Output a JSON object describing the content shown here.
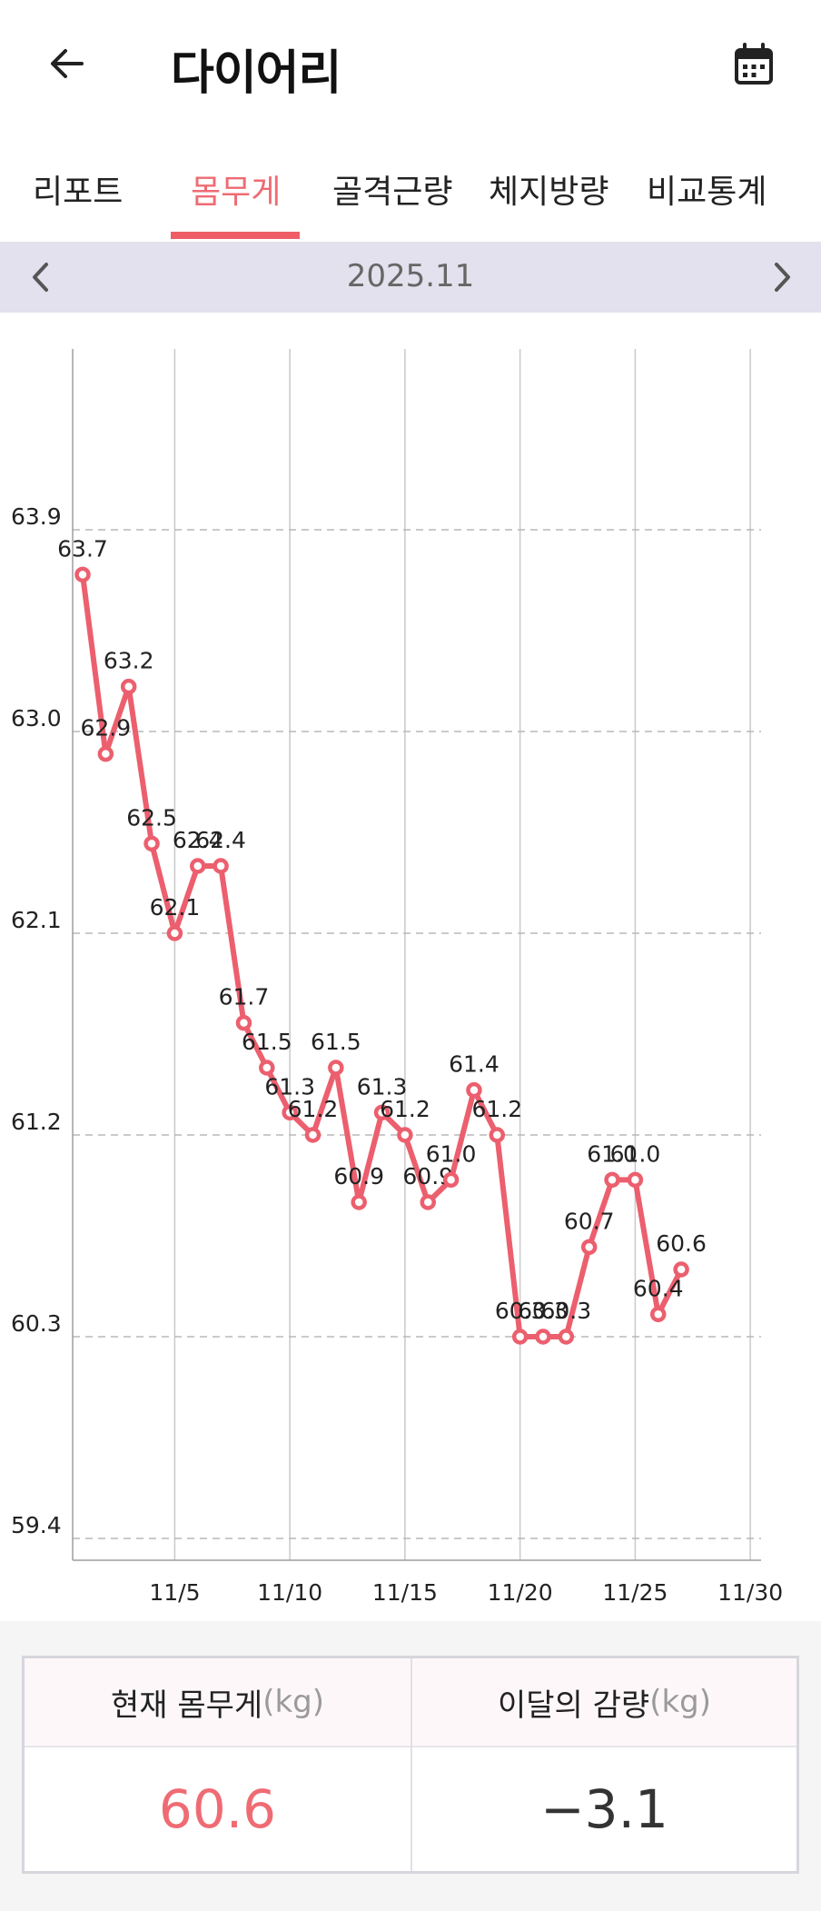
{
  "app": {
    "title": "다이어리"
  },
  "tabs": [
    {
      "label": "리포트",
      "active": false
    },
    {
      "label": "몸무게",
      "active": true
    },
    {
      "label": "골격근량",
      "active": false
    },
    {
      "label": "체지방량",
      "active": false
    },
    {
      "label": "비교통계",
      "active": false
    }
  ],
  "period": {
    "label": "2025.11"
  },
  "colors": {
    "accent": "#ef5e66",
    "line": "#ec5f6e",
    "period_bar": "#e3e1ed"
  },
  "chart_data": {
    "type": "line",
    "xlabel": "",
    "ylabel": "",
    "x_ticks": [
      "11/5",
      "11/10",
      "11/15",
      "11/20",
      "11/25",
      "11/30"
    ],
    "x_tick_days": [
      5,
      10,
      15,
      20,
      25,
      30
    ],
    "xlim": [
      1,
      31
    ],
    "y_ticks": [
      59.4,
      60.3,
      61.2,
      62.1,
      63.0,
      63.9
    ],
    "y_tick_labels": [
      "59.4",
      "60.3",
      "61.2",
      "62.1",
      "63.0",
      "63.9"
    ],
    "ylim": [
      59.3,
      64.7
    ],
    "grid": {
      "vertical": true,
      "horizontal_dashed": true
    },
    "series": [
      {
        "x": [
          1,
          2,
          3,
          4,
          5,
          6,
          7,
          8,
          9,
          10,
          11,
          12,
          13,
          14,
          15,
          16,
          17,
          18,
          19,
          20,
          21,
          22,
          23,
          24,
          25,
          26,
          27
        ],
        "values": [
          63.7,
          62.9,
          63.2,
          62.5,
          62.1,
          62.4,
          62.4,
          61.7,
          61.5,
          61.3,
          61.2,
          61.5,
          60.9,
          61.3,
          61.2,
          60.9,
          61.0,
          61.4,
          61.2,
          60.3,
          60.3,
          60.3,
          60.7,
          61.0,
          61.0,
          60.4,
          60.6
        ],
        "labels": [
          "63.7",
          "62.9",
          "63.2",
          "62.5",
          "62.1",
          "62.4",
          "62.4",
          "61.7",
          "61.5",
          "61.3",
          "61.2",
          "61.5",
          "60.9",
          "61.3",
          "61.2",
          "60.9",
          "61.0",
          "61.4",
          "61.2",
          "60.3",
          "60.3",
          "60.3",
          "60.7",
          "61.0",
          "61.0",
          "60.4",
          "60.6"
        ]
      }
    ]
  },
  "summary": {
    "current_label": "현재 몸무게",
    "current_unit": "(kg)",
    "current_value": "60.6",
    "current_color": "#ef6b73",
    "change_label": "이달의 감량",
    "change_unit": "(kg)",
    "change_value": "−3.1",
    "change_color": "#333333"
  }
}
